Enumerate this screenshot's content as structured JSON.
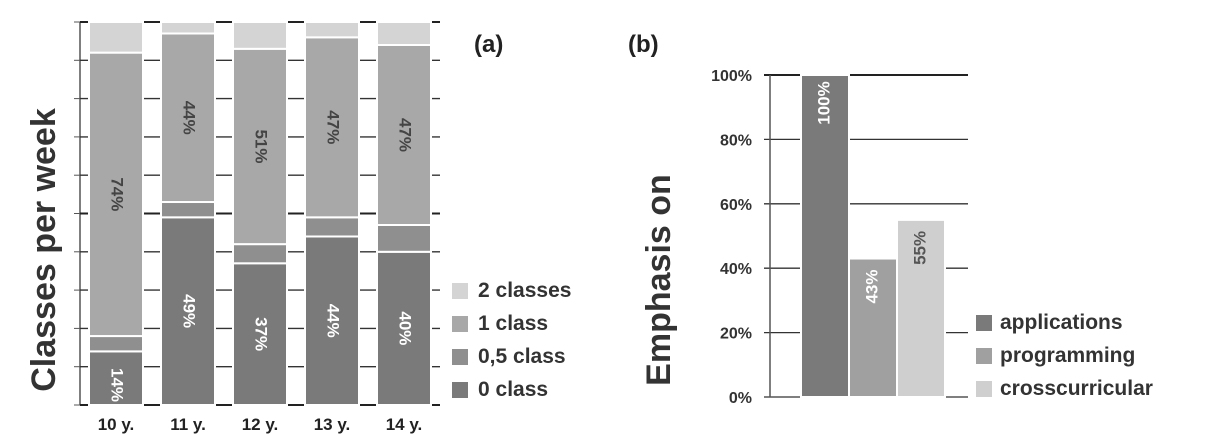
{
  "chart_data": [
    {
      "type": "bar",
      "stacked": true,
      "panel_label": "(a)",
      "ylabel": "Classes per week",
      "categories": [
        "10 y.",
        "11 y.",
        "12 y.",
        "13 y.",
        "14 y."
      ],
      "series": [
        {
          "name": "0 class",
          "values": [
            14,
            49,
            37,
            44,
            40
          ],
          "labels": [
            "14%",
            "49%",
            "37%",
            "44%",
            "40%"
          ],
          "color": "#7a7a7a"
        },
        {
          "name": "0,5 class",
          "values": [
            4,
            4,
            5,
            5,
            7
          ],
          "labels": [
            "",
            "",
            "",
            "",
            ""
          ],
          "color": "#8f8f8f"
        },
        {
          "name": "1 class",
          "values": [
            74,
            44,
            51,
            47,
            47
          ],
          "labels": [
            "74%",
            "44%",
            "51%",
            "47%",
            "47%"
          ],
          "color": "#a8a8a8"
        },
        {
          "name": "2 classes",
          "values": [
            8,
            3,
            7,
            4,
            6
          ],
          "labels": [
            "",
            "",
            "",
            "",
            ""
          ],
          "color": "#d4d4d4"
        }
      ],
      "legend_order": [
        "2 classes",
        "1 class",
        "0,5 class",
        "0 class"
      ],
      "legend_position": "right",
      "ylim": [
        0,
        100
      ],
      "grid": true
    },
    {
      "type": "bar",
      "panel_label": "(b)",
      "ylabel": "Emphasis on",
      "categories": [
        "applications",
        "programming",
        "crosscurricular"
      ],
      "values": [
        100,
        43,
        55
      ],
      "value_labels": [
        "100%",
        "43%",
        "55%"
      ],
      "colors": [
        "#7a7a7a",
        "#a0a0a0",
        "#cfcfcf"
      ],
      "yticks": [
        "0%",
        "20%",
        "40%",
        "60%",
        "80%",
        "100%"
      ],
      "ylim": [
        0,
        100
      ],
      "legend_position": "right",
      "grid": true
    }
  ]
}
